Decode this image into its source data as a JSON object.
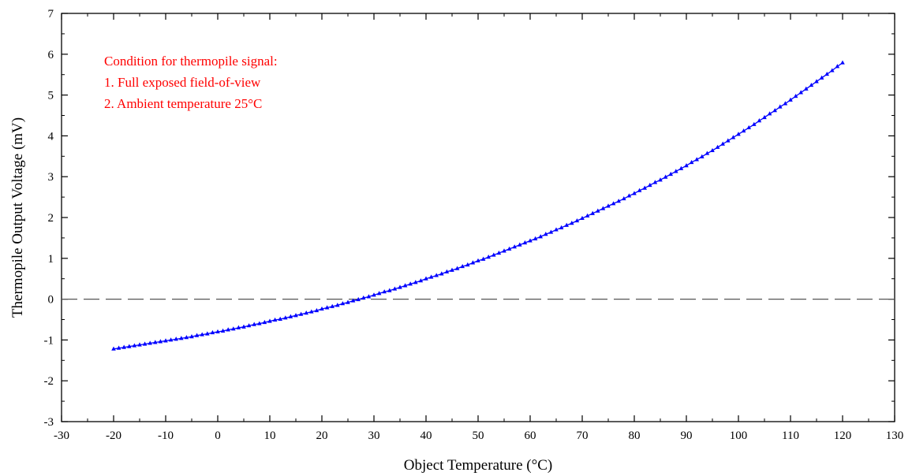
{
  "chart_data": {
    "type": "line",
    "title": "",
    "xlabel": "Object Temperature (°C)",
    "ylabel": "Thermopile Output Voltage (mV)",
    "xlim": [
      -30,
      130
    ],
    "ylim": [
      -3,
      7
    ],
    "x_ticks": [
      "-30",
      "-20",
      "-10",
      "0",
      "10",
      "20",
      "30",
      "40",
      "50",
      "60",
      "70",
      "80",
      "90",
      "100",
      "110",
      "120",
      "130"
    ],
    "y_ticks": [
      "-3",
      "-2",
      "-1",
      "0",
      "1",
      "2",
      "3",
      "4",
      "5",
      "6",
      "7"
    ],
    "grid": false,
    "legend": "none",
    "reference_line": {
      "y": 0,
      "style": "dashed",
      "color": "#555555"
    },
    "annotation_lines": [
      "Condition for thermopile signal:",
      "1. Full exposed field-of-view",
      "2. Ambient temperature 25°C"
    ],
    "annotation_color": "#ff0000",
    "series": [
      {
        "marker": "triangle",
        "color": "#0000ff",
        "x": [
          -20,
          -19,
          -18,
          -17,
          -16,
          -15,
          -14,
          -13,
          -12,
          -11,
          -10,
          -9,
          -8,
          -7,
          -6,
          -5,
          -4,
          -3,
          -2,
          -1,
          0,
          1,
          2,
          3,
          4,
          5,
          6,
          7,
          8,
          9,
          10,
          11,
          12,
          13,
          14,
          15,
          16,
          17,
          18,
          19,
          20,
          21,
          22,
          23,
          24,
          25,
          26,
          27,
          28,
          29,
          30,
          31,
          32,
          33,
          34,
          35,
          36,
          37,
          38,
          39,
          40,
          41,
          42,
          43,
          44,
          45,
          46,
          47,
          48,
          49,
          50,
          51,
          52,
          53,
          54,
          55,
          56,
          57,
          58,
          59,
          60,
          61,
          62,
          63,
          64,
          65,
          66,
          67,
          68,
          69,
          70,
          71,
          72,
          73,
          74,
          75,
          76,
          77,
          78,
          79,
          80,
          81,
          82,
          83,
          84,
          85,
          86,
          87,
          88,
          89,
          90,
          91,
          92,
          93,
          94,
          95,
          96,
          97,
          98,
          99,
          100,
          101,
          102,
          103,
          104,
          105,
          106,
          107,
          108,
          109,
          110,
          111,
          112,
          113,
          114,
          115,
          116,
          117,
          118,
          119,
          120
        ],
        "y": [
          -1.22,
          -1.2,
          -1.18,
          -1.16,
          -1.14,
          -1.12,
          -1.1,
          -1.08,
          -1.06,
          -1.04,
          -1.02,
          -1.0,
          -0.98,
          -0.96,
          -0.94,
          -0.92,
          -0.89,
          -0.87,
          -0.85,
          -0.82,
          -0.8,
          -0.78,
          -0.75,
          -0.73,
          -0.7,
          -0.68,
          -0.65,
          -0.62,
          -0.6,
          -0.57,
          -0.54,
          -0.51,
          -0.49,
          -0.46,
          -0.43,
          -0.4,
          -0.37,
          -0.34,
          -0.31,
          -0.28,
          -0.24,
          -0.21,
          -0.18,
          -0.15,
          -0.11,
          -0.08,
          -0.04,
          -0.01,
          0.03,
          0.06,
          0.1,
          0.14,
          0.18,
          0.21,
          0.25,
          0.29,
          0.33,
          0.37,
          0.41,
          0.45,
          0.5,
          0.54,
          0.58,
          0.62,
          0.67,
          0.71,
          0.75,
          0.8,
          0.84,
          0.89,
          0.94,
          0.98,
          1.03,
          1.08,
          1.13,
          1.18,
          1.23,
          1.28,
          1.33,
          1.38,
          1.43,
          1.48,
          1.53,
          1.59,
          1.64,
          1.7,
          1.75,
          1.81,
          1.86,
          1.92,
          1.98,
          2.04,
          2.1,
          2.16,
          2.22,
          2.28,
          2.34,
          2.4,
          2.46,
          2.53,
          2.59,
          2.66,
          2.72,
          2.79,
          2.86,
          2.92,
          2.99,
          3.06,
          3.13,
          3.2,
          3.27,
          3.35,
          3.42,
          3.49,
          3.57,
          3.64,
          3.72,
          3.8,
          3.88,
          3.96,
          4.04,
          4.12,
          4.2,
          4.28,
          4.37,
          4.45,
          4.54,
          4.62,
          4.71,
          4.79,
          4.88,
          4.97,
          5.06,
          5.15,
          5.24,
          5.33,
          5.42,
          5.51,
          5.6,
          5.7,
          5.79
        ]
      }
    ]
  }
}
